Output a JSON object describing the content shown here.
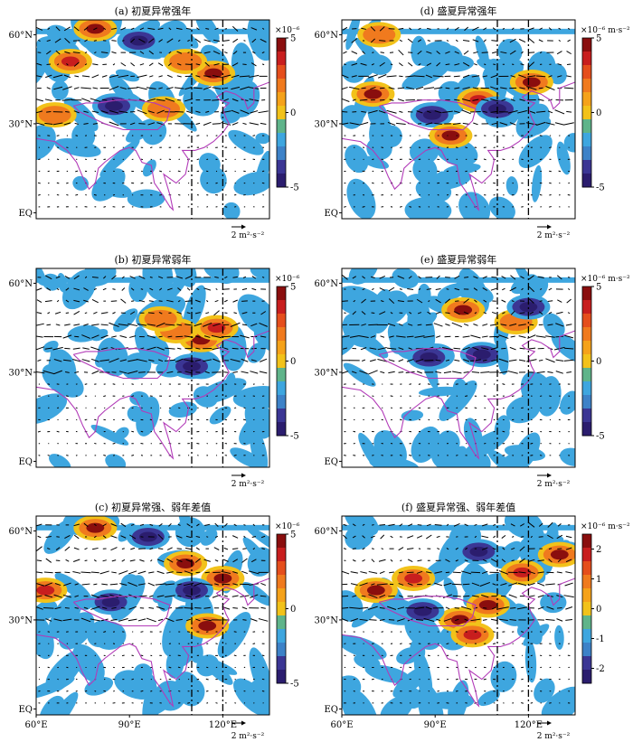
{
  "figure": {
    "x_ticks": [
      "60°E",
      "90°E",
      "120°E"
    ],
    "y_ticks": [
      "60°N",
      "30°N",
      "EQ"
    ],
    "reference_vector": "2 m²·s⁻²",
    "colors": {
      "coast": "#b23bb8",
      "light_blue": "#3ea6df",
      "dark_navy": "#2b1d6e",
      "yellow": "#f2c21a",
      "orange": "#f07a1e",
      "red": "#c81e1e",
      "dark_red": "#8a0e0e"
    }
  },
  "chart_data": [
    {
      "type": "heatmap",
      "title": "(a) 初夏异常强年",
      "colorbar": {
        "unit": "×10⁻⁶",
        "ticks": [
          5,
          0,
          -5
        ],
        "range": [
          -5,
          5
        ]
      },
      "blobs": [
        {
          "lon": 79,
          "lat": 62,
          "value": 5
        },
        {
          "lon": 93,
          "lat": 58,
          "value": -5
        },
        {
          "lon": 117,
          "lat": 47,
          "value": 5
        },
        {
          "lon": 108,
          "lat": 51,
          "value": 3
        },
        {
          "lon": 85,
          "lat": 36,
          "value": -5
        },
        {
          "lon": 66,
          "lat": 33,
          "value": 3
        },
        {
          "lon": 101,
          "lat": 35,
          "value": 3
        },
        {
          "lon": 71,
          "lat": 51,
          "value": 4
        }
      ]
    },
    {
      "type": "heatmap",
      "title": "(d) 盛夏异常强年",
      "colorbar": {
        "unit": "×10⁻⁶ m·s⁻²",
        "ticks": [
          5,
          0,
          -5
        ],
        "range": [
          -5,
          5
        ]
      },
      "blobs": [
        {
          "lon": 70,
          "lat": 40,
          "value": 5
        },
        {
          "lon": 89,
          "lat": 33,
          "value": -5
        },
        {
          "lon": 104,
          "lat": 38,
          "value": 4
        },
        {
          "lon": 121,
          "lat": 44,
          "value": 5
        },
        {
          "lon": 110,
          "lat": 35,
          "value": -5
        },
        {
          "lon": 95,
          "lat": 26,
          "value": 5
        },
        {
          "lon": 72,
          "lat": 60,
          "value": 3
        }
      ]
    },
    {
      "type": "heatmap",
      "title": "(b) 初夏异常弱年",
      "colorbar": {
        "unit": "×10⁻⁶",
        "ticks": [
          5,
          0,
          -5
        ],
        "range": [
          -5,
          5
        ]
      },
      "blobs": [
        {
          "lon": 113,
          "lat": 41,
          "value": 5
        },
        {
          "lon": 118,
          "lat": 45,
          "value": 4
        },
        {
          "lon": 105,
          "lat": 44,
          "value": 3
        },
        {
          "lon": 110,
          "lat": 32,
          "value": -5
        },
        {
          "lon": 100,
          "lat": 48,
          "value": 3
        }
      ]
    },
    {
      "type": "heatmap",
      "title": "(e) 盛夏异常弱年",
      "colorbar": {
        "unit": "×10⁻⁶ m·s⁻²",
        "ticks": [
          5,
          0,
          -5
        ],
        "range": [
          -5,
          5
        ]
      },
      "blobs": [
        {
          "lon": 99,
          "lat": 51,
          "value": 5
        },
        {
          "lon": 116,
          "lat": 47,
          "value": 3
        },
        {
          "lon": 88,
          "lat": 35,
          "value": -5
        },
        {
          "lon": 120,
          "lat": 52,
          "value": -5
        },
        {
          "lon": 105,
          "lat": 36,
          "value": -5
        }
      ]
    },
    {
      "type": "heatmap",
      "title": "(c) 初夏异常强、弱年差值",
      "colorbar": {
        "unit": "×10⁻⁶",
        "ticks": [
          5,
          0,
          -5
        ],
        "range": [
          -5,
          5
        ]
      },
      "blobs": [
        {
          "lon": 79,
          "lat": 61,
          "value": 5
        },
        {
          "lon": 96,
          "lat": 58,
          "value": -5
        },
        {
          "lon": 108,
          "lat": 49,
          "value": 5
        },
        {
          "lon": 120,
          "lat": 44,
          "value": 5
        },
        {
          "lon": 84,
          "lat": 36,
          "value": -5
        },
        {
          "lon": 115,
          "lat": 28,
          "value": 5
        },
        {
          "lon": 110,
          "lat": 40,
          "value": -5
        },
        {
          "lon": 63,
          "lat": 40,
          "value": 4
        }
      ]
    },
    {
      "type": "heatmap",
      "title": "(f) 盛夏异常强、弱年差值",
      "colorbar": {
        "unit": "×10⁻⁶ m·s⁻²",
        "ticks": [
          2,
          1,
          0,
          -1,
          -2
        ],
        "range": [
          -2.5,
          2.5
        ]
      },
      "blobs": [
        {
          "lon": 71,
          "lat": 40,
          "value": 2.5
        },
        {
          "lon": 83,
          "lat": 44,
          "value": 2
        },
        {
          "lon": 130,
          "lat": 52,
          "value": 2.5
        },
        {
          "lon": 118,
          "lat": 46,
          "value": 2
        },
        {
          "lon": 107,
          "lat": 35,
          "value": 2.5
        },
        {
          "lon": 98,
          "lat": 30,
          "value": 2.5
        },
        {
          "lon": 102,
          "lat": 25,
          "value": 2
        },
        {
          "lon": 86,
          "lat": 33,
          "value": -2.5
        },
        {
          "lon": 104,
          "lat": 53,
          "value": -2.5
        }
      ]
    }
  ]
}
